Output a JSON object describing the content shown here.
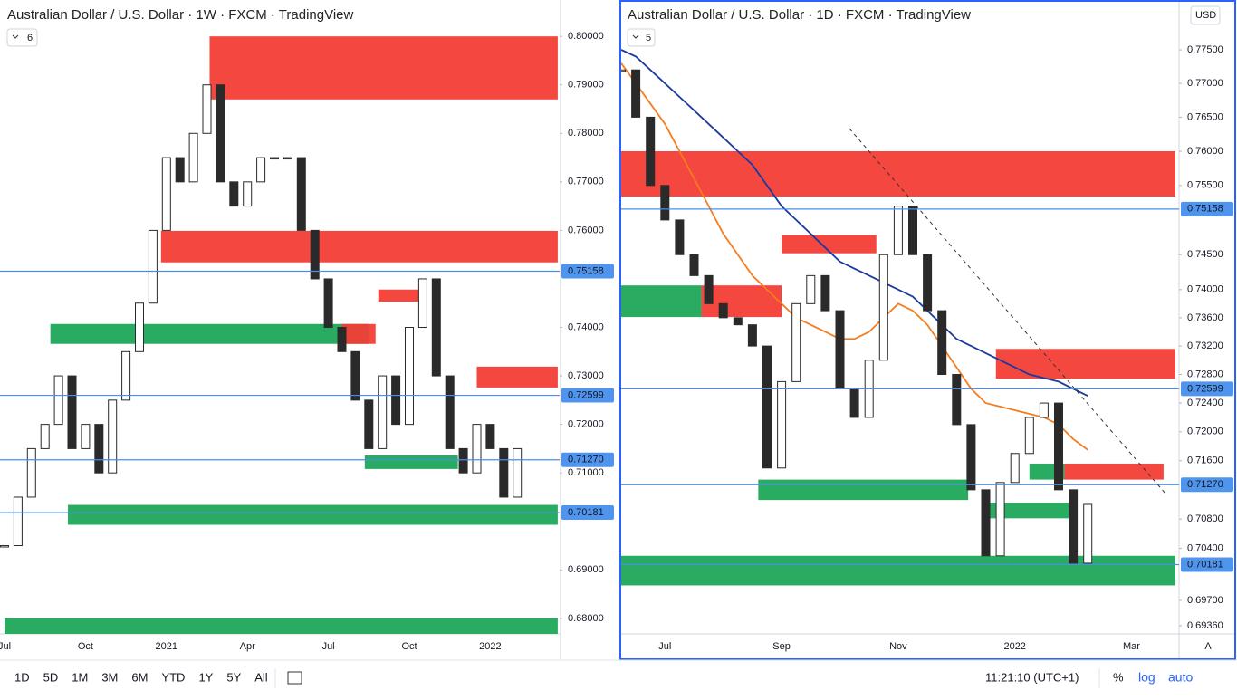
{
  "chart_data": [
    {
      "type": "candlestick",
      "title": "Australian Dollar / U.S. Dollar · 1W · FXCM · TradingView",
      "badge": 6,
      "categories": [
        "Jul",
        null,
        null,
        null,
        null,
        null,
        "Oct",
        null,
        null,
        null,
        null,
        null,
        "2021",
        null,
        null,
        null,
        null,
        null,
        "Apr",
        null,
        null,
        null,
        null,
        null,
        "Jul",
        null,
        null,
        null,
        null,
        null,
        "Oct",
        null,
        null,
        null,
        null,
        null,
        "2022",
        null,
        null
      ],
      "values": [
        0.695,
        0.705,
        0.715,
        0.72,
        0.73,
        0.715,
        0.72,
        0.71,
        0.725,
        0.735,
        0.745,
        0.76,
        0.775,
        0.77,
        0.78,
        0.79,
        0.77,
        0.765,
        0.77,
        0.775,
        0.775,
        0.775,
        0.76,
        0.75,
        0.74,
        0.735,
        0.725,
        0.715,
        0.73,
        0.72,
        0.74,
        0.75,
        0.73,
        0.715,
        0.71,
        0.72,
        0.715,
        0.705,
        0.715
      ],
      "ylim": [
        0.6768,
        0.8075
      ],
      "yticks": [
        {
          "value": 0.8,
          "label": "0.80000"
        },
        {
          "value": 0.79,
          "label": "0.79000"
        },
        {
          "value": 0.78,
          "label": "0.78000"
        },
        {
          "value": 0.77,
          "label": "0.77000"
        },
        {
          "value": 0.76,
          "label": "0.76000"
        },
        {
          "value": 0.74,
          "label": "0.74000"
        },
        {
          "value": 0.73,
          "label": "0.73000"
        },
        {
          "value": 0.72,
          "label": "0.72000"
        },
        {
          "value": 0.71,
          "label": "0.71000"
        },
        {
          "value": 0.69,
          "label": "0.69000"
        },
        {
          "value": 0.68,
          "label": "0.68000"
        }
      ],
      "log_scale": false,
      "levels": [
        0.75158,
        0.72599,
        {
          "value": 0.7127,
          "label": "0.71270"
        },
        0.70181
      ],
      "zones": [
        {
          "low": 0.787,
          "high": 0.8,
          "start": 15.2,
          "end": 41,
          "color": "#f23d36"
        },
        {
          "low": 0.7534,
          "high": 0.7599,
          "start": 11.6,
          "end": 41,
          "color": "#f23d36"
        },
        {
          "low": 0.7366,
          "high": 0.7407,
          "start": 3.4,
          "end": 27,
          "color": "#1ea85a"
        },
        {
          "low": 0.7366,
          "high": 0.7407,
          "start": 25,
          "end": 27.5,
          "color": "#f23d36"
        },
        {
          "low": 0.7453,
          "high": 0.7478,
          "start": 27.7,
          "end": 30.9,
          "color": "#f23d36"
        },
        {
          "low": 0.7276,
          "high": 0.7319,
          "start": 35,
          "end": 41,
          "color": "#f23d36"
        },
        {
          "low": 0.7108,
          "high": 0.7136,
          "start": 26.7,
          "end": 33.6,
          "color": "#1ea85a"
        },
        {
          "low": 0.6993,
          "high": 0.7034,
          "start": 4.7,
          "end": 41,
          "color": "#1ea85a"
        },
        {
          "low": 0.6768,
          "high": 0.68,
          "start": 0,
          "end": 41,
          "color": "#1ea85a"
        }
      ]
    },
    {
      "type": "candlestick",
      "title": "Australian Dollar / U.S. Dollar · 1D · FXCM · TradingView",
      "badge": 5,
      "currency": "USD",
      "auto_scale_label": "A",
      "categories": [
        null,
        null,
        null,
        "Jul",
        null,
        null,
        null,
        null,
        null,
        null,
        null,
        "Sep",
        null,
        null,
        null,
        null,
        null,
        null,
        null,
        "Nov",
        null,
        null,
        null,
        null,
        null,
        null,
        null,
        "2022",
        null,
        null,
        null,
        null,
        null,
        null,
        null,
        "Mar"
      ],
      "values": [
        0.772,
        0.765,
        0.755,
        0.75,
        0.745,
        0.742,
        0.738,
        0.736,
        0.735,
        0.732,
        0.715,
        0.727,
        0.738,
        0.742,
        0.737,
        0.726,
        0.722,
        0.73,
        0.745,
        0.752,
        0.745,
        0.737,
        0.728,
        0.721,
        0.712,
        0.703,
        0.713,
        0.717,
        0.722,
        0.724,
        0.712,
        0.702,
        0.71,
        null,
        null,
        null
      ],
      "series": [
        {
          "color": "#1a3a9c",
          "values": [
            0.775,
            0.774,
            0.772,
            0.77,
            0.768,
            0.766,
            0.764,
            0.762,
            0.76,
            0.758,
            0.755,
            0.752,
            0.75,
            0.748,
            0.746,
            0.744,
            0.743,
            0.742,
            0.741,
            0.74,
            0.739,
            0.737,
            0.735,
            0.733,
            0.732,
            0.731,
            0.73,
            0.729,
            0.728,
            0.7275,
            0.727,
            0.726,
            0.725,
            null,
            null,
            null
          ]
        },
        {
          "color": "#f57c1f",
          "values": [
            0.773,
            0.77,
            0.767,
            0.764,
            0.76,
            0.756,
            0.752,
            0.748,
            0.745,
            0.742,
            0.74,
            0.738,
            0.736,
            0.735,
            0.734,
            0.733,
            0.733,
            0.734,
            0.736,
            0.738,
            0.737,
            0.735,
            0.732,
            0.729,
            0.726,
            0.724,
            0.7235,
            0.723,
            0.7225,
            0.722,
            0.721,
            0.719,
            0.7175,
            null,
            null,
            null
          ]
        }
      ],
      "ylim": [
        0.6925,
        0.7822
      ],
      "yticks": [
        {
          "value": 0.775,
          "label": "0.77500"
        },
        {
          "value": 0.77,
          "label": "0.77000"
        },
        {
          "value": 0.765,
          "label": "0.76500"
        },
        {
          "value": 0.76,
          "label": "0.76000"
        },
        {
          "value": 0.755,
          "label": "0.75500"
        },
        {
          "value": 0.745,
          "label": "0.74500"
        },
        {
          "value": 0.74,
          "label": "0.74000"
        },
        {
          "value": 0.736,
          "label": "0.73600"
        },
        {
          "value": 0.732,
          "label": "0.73200"
        },
        {
          "value": 0.728,
          "label": "0.72800"
        },
        {
          "value": 0.724,
          "label": "0.72400"
        },
        {
          "value": 0.72,
          "label": "0.72000"
        },
        {
          "value": 0.716,
          "label": "0.71600"
        },
        {
          "value": 0.708,
          "label": "0.70800"
        },
        {
          "value": 0.704,
          "label": "0.70400"
        },
        {
          "value": 0.697,
          "label": "0.69700"
        },
        {
          "value": 0.6936,
          "label": "0.69360"
        }
      ],
      "log_scale": true,
      "levels": [
        0.75158,
        0.72599,
        {
          "value": 0.7127,
          "label": "0.71270"
        },
        0.70181
      ],
      "zones": [
        {
          "low": 0.7534,
          "high": 0.76,
          "start": 0,
          "end": 38,
          "color": "#f23d36"
        },
        {
          "low": 0.7452,
          "high": 0.7478,
          "start": 11,
          "end": 17.5,
          "color": "#f23d36"
        },
        {
          "low": 0.7361,
          "high": 0.7406,
          "start": 0,
          "end": 5.5,
          "color": "#1ea85a"
        },
        {
          "low": 0.7361,
          "high": 0.7406,
          "start": 5.5,
          "end": 11,
          "color": "#f23d36"
        },
        {
          "low": 0.7274,
          "high": 0.7316,
          "start": 25.7,
          "end": 38,
          "color": "#f23d36"
        },
        {
          "low": 0.7134,
          "high": 0.7156,
          "start": 28,
          "end": 30.4,
          "color": "#1ea85a"
        },
        {
          "low": 0.7134,
          "high": 0.7156,
          "start": 30.4,
          "end": 37.2,
          "color": "#f23d36"
        },
        {
          "low": 0.7106,
          "high": 0.7134,
          "start": 9.4,
          "end": 23.8,
          "color": "#1ea85a"
        },
        {
          "low": 0.7081,
          "high": 0.7102,
          "start": 24.8,
          "end": 30.7,
          "color": "#1ea85a"
        },
        {
          "low": 0.699,
          "high": 0.703,
          "start": 0,
          "end": 38,
          "color": "#1ea85a"
        }
      ]
    }
  ],
  "toolbar": {
    "ranges": [
      "1D",
      "5D",
      "1M",
      "3M",
      "6M",
      "YTD",
      "1Y",
      "5Y",
      "All"
    ],
    "clock": "11:21:10 (UTC+1)",
    "percent": "%",
    "log": "log",
    "auto": "auto"
  }
}
